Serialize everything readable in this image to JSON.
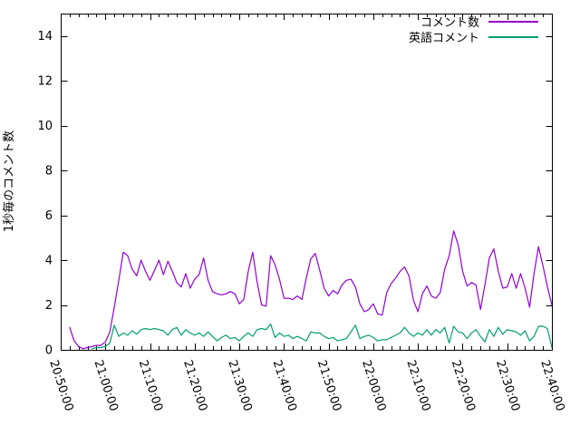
{
  "figure": {
    "background": "#ffffff"
  },
  "chart_data": {
    "type": "line",
    "title": "",
    "grid": false,
    "legend_position": "top-right-inside",
    "interval_minutes": 1,
    "x_axis": {
      "label": "",
      "min": "20:50:00",
      "max": "22:40:00",
      "minor_step_minutes": 2,
      "tick_rotation_deg": 72,
      "ticks": [
        "20:50:00",
        "21:00:00",
        "21:10:00",
        "21:20:00",
        "21:30:00",
        "21:40:00",
        "21:50:00",
        "22:00:00",
        "22:10:00",
        "22:20:00",
        "22:30:00",
        "22:40:00"
      ]
    },
    "y_axis": {
      "label": "1秒毎のコメント数",
      "min": 0,
      "max": 15,
      "ticks": [
        0,
        2,
        4,
        6,
        8,
        10,
        12,
        14
      ]
    },
    "series": [
      {
        "name": "コメント数",
        "color": "#9400d3",
        "start_time": "20:52:00",
        "values": [
          1.0,
          0.4,
          0.15,
          0.05,
          0.1,
          0.15,
          0.2,
          0.2,
          0.35,
          0.8,
          1.9,
          3.1,
          4.35,
          4.2,
          3.6,
          3.3,
          4.0,
          3.5,
          3.1,
          3.55,
          4.0,
          3.35,
          3.95,
          3.5,
          3.0,
          2.8,
          3.4,
          2.75,
          3.15,
          3.35,
          4.1,
          3.1,
          2.6,
          2.5,
          2.45,
          2.5,
          2.6,
          2.5,
          2.05,
          2.25,
          3.5,
          4.35,
          3.0,
          2.0,
          1.95,
          4.2,
          3.8,
          3.15,
          2.3,
          2.3,
          2.25,
          2.4,
          2.25,
          3.2,
          4.05,
          4.3,
          3.55,
          2.75,
          2.4,
          2.65,
          2.5,
          2.9,
          3.1,
          3.15,
          2.8,
          2.05,
          1.7,
          1.8,
          2.05,
          1.6,
          1.55,
          2.55,
          2.95,
          3.2,
          3.5,
          3.7,
          3.3,
          2.2,
          1.7,
          2.5,
          2.85,
          2.4,
          2.3,
          2.55,
          3.6,
          4.2,
          5.3,
          4.7,
          3.5,
          2.85,
          3.0,
          2.9,
          1.8,
          2.9,
          4.1,
          4.5,
          3.5,
          2.75,
          2.8,
          3.4,
          2.75,
          3.4,
          2.75,
          1.9,
          3.4,
          4.6,
          3.75,
          2.8,
          2.0
        ]
      },
      {
        "name": "英語コメント",
        "color": "#009e73",
        "start_time": "20:57:00",
        "values": [
          0.05,
          0.1,
          0.1,
          0.15,
          0.3,
          1.1,
          0.6,
          0.75,
          0.65,
          0.85,
          0.7,
          0.9,
          0.95,
          0.9,
          0.95,
          0.9,
          0.85,
          0.65,
          0.9,
          1.0,
          0.65,
          0.9,
          0.75,
          0.65,
          0.75,
          0.6,
          0.8,
          0.6,
          0.4,
          0.55,
          0.65,
          0.5,
          0.55,
          0.4,
          0.6,
          0.75,
          0.6,
          0.9,
          0.95,
          0.9,
          1.15,
          0.55,
          0.75,
          0.6,
          0.65,
          0.5,
          0.6,
          0.5,
          0.4,
          0.8,
          0.75,
          0.75,
          0.6,
          0.5,
          0.55,
          0.4,
          0.45,
          0.5,
          0.8,
          1.1,
          0.5,
          0.6,
          0.65,
          0.55,
          0.4,
          0.45,
          0.45,
          0.55,
          0.65,
          0.75,
          1.0,
          0.75,
          0.6,
          0.75,
          0.65,
          0.9,
          0.65,
          0.9,
          0.75,
          1.0,
          0.3,
          1.05,
          0.8,
          0.75,
          0.5,
          0.75,
          0.9,
          0.6,
          0.35,
          0.9,
          0.6,
          1.0,
          0.7,
          0.9,
          0.85,
          0.8,
          0.65,
          0.85,
          0.4,
          0.6,
          1.05,
          1.05,
          0.95,
          0.1
        ]
      }
    ]
  }
}
